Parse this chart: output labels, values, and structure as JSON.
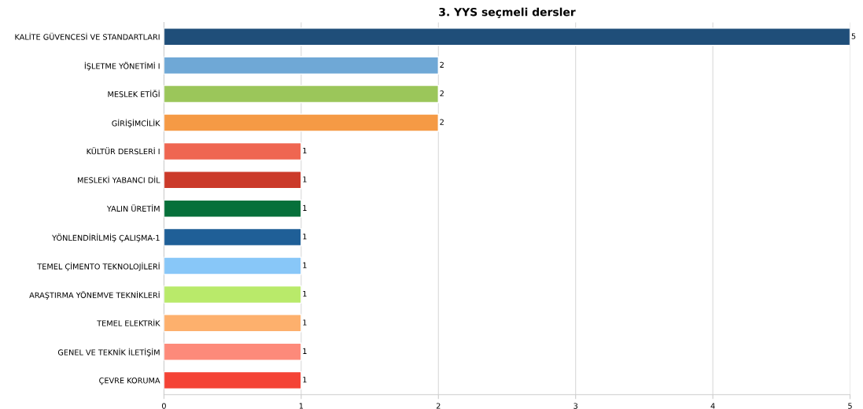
{
  "chart_data": {
    "type": "bar",
    "orientation": "horizontal",
    "title": "3. YYS seçmeli dersler",
    "categories": [
      "KALİTE GÜVENCESİ VE STANDARTLARI",
      "İŞLETME YÖNETİMİ I",
      "MESLEK ETİĞİ",
      "GİRİŞİMCİLİK",
      "KÜLTÜR DERSLERİ I",
      "MESLEKİ YABANCI DİL",
      "YALIN ÜRETİM",
      "YÖNLENDİRİLMİŞ ÇALIŞMA-1",
      "TEMEL ÇİMENTO TEKNOLOJİLERİ",
      "ARAŞTIRMA YÖNEMVE TEKNİKLERİ",
      "TEMEL ELEKTRİK",
      "GENEL VE TEKNİK İLETİŞİM",
      "ÇEVRE KORUMA"
    ],
    "values": [
      5,
      2,
      2,
      2,
      1,
      1,
      1,
      1,
      1,
      1,
      1,
      1,
      1
    ],
    "colors": [
      "#1f4e79",
      "#6fa8d6",
      "#9bc65a",
      "#f59a45",
      "#ef6651",
      "#cb3a2a",
      "#06703a",
      "#1f5f97",
      "#88c7f8",
      "#b9ea6a",
      "#fdb06d",
      "#fd8a7a",
      "#f44336"
    ],
    "xlim": [
      0,
      5
    ],
    "xticks": [
      0,
      1,
      2,
      3,
      4,
      5
    ],
    "grid": "x",
    "data_labels": true
  }
}
